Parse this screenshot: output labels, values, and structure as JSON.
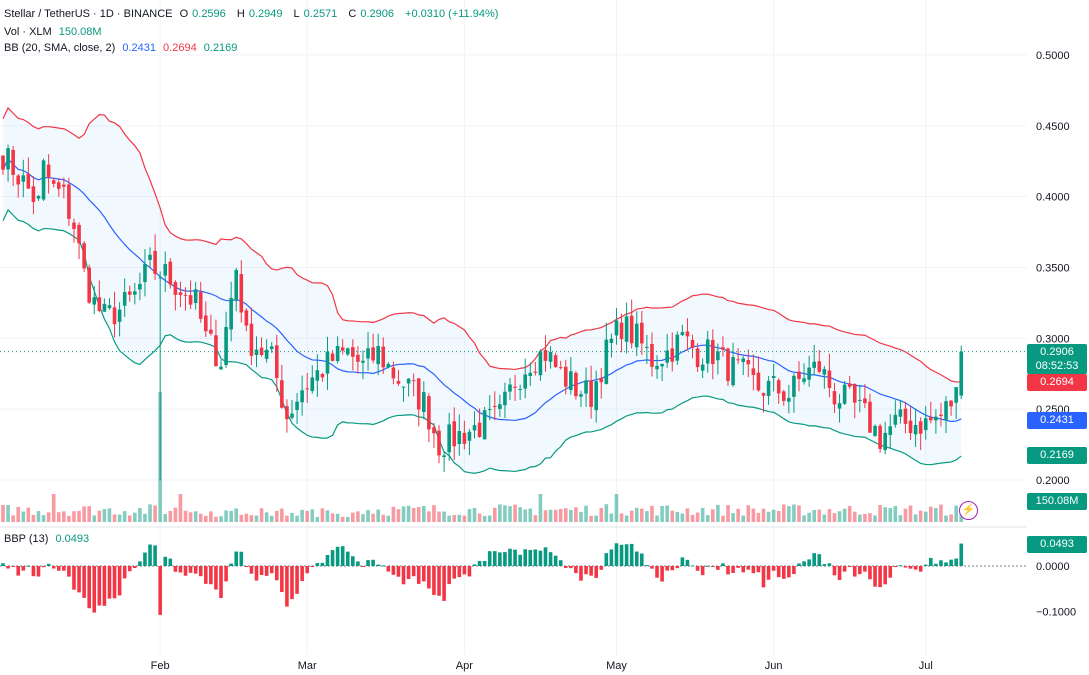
{
  "legend": {
    "symbol": "Stellar / TetherUS · 1D · BINANCE",
    "open_label": "O",
    "open": "0.2596",
    "high_label": "H",
    "high": "0.2949",
    "low_label": "L",
    "low": "0.2571",
    "close_label": "C",
    "close": "0.2906",
    "change": "+0.0310 (+11.94%)",
    "vol_label": "Vol · XLM",
    "vol": "150.08M",
    "bb_label": "BB (20, SMA, close, 2)",
    "bb_basis": "0.2431",
    "bb_upper": "0.2694",
    "bb_lower": "0.2169",
    "bbp_label": "BBP (13)",
    "bbp": "0.0493"
  },
  "tags": {
    "price": "0.2906",
    "countdown": "08:52:53",
    "upper": "0.2694",
    "basis": "0.2431",
    "lower": "0.2169",
    "volume": "150.08M",
    "bbp": "0.0493"
  },
  "colors": {
    "up": "#089981",
    "down": "#f23645",
    "basis": "#2962ff",
    "upper": "#f23645",
    "lower": "#089981",
    "band_fill": "#2196f3"
  },
  "chart_data": {
    "type": "candlestick",
    "x_ticks": [
      "Feb",
      "Mar",
      "Apr",
      "May",
      "Jun",
      "Jul"
    ],
    "x_tick_days": [
      31,
      60,
      91,
      121,
      152,
      182
    ],
    "price_ticks": [
      "0.5000",
      "0.4500",
      "0.4000",
      "0.3500",
      "0.3000",
      "0.2500",
      "0.2000"
    ],
    "price_tick_values": [
      0.5,
      0.45,
      0.4,
      0.35,
      0.3,
      0.25,
      0.2
    ],
    "bbp_ticks": [
      "0.0000",
      "−0.1000"
    ],
    "bbp_tick_values": [
      0,
      -0.1
    ],
    "close_anchors": [
      [
        0,
        0.43
      ],
      [
        4,
        0.41
      ],
      [
        7,
        0.395
      ],
      [
        8,
        0.42
      ],
      [
        10,
        0.405
      ],
      [
        12,
        0.4
      ],
      [
        14,
        0.38
      ],
      [
        16,
        0.345
      ],
      [
        18,
        0.325
      ],
      [
        20,
        0.315
      ],
      [
        23,
        0.32
      ],
      [
        26,
        0.33
      ],
      [
        29,
        0.35
      ],
      [
        32,
        0.345
      ],
      [
        35,
        0.335
      ],
      [
        38,
        0.325
      ],
      [
        40,
        0.3
      ],
      [
        43,
        0.285
      ],
      [
        46,
        0.35
      ],
      [
        48,
        0.3
      ],
      [
        50,
        0.295
      ],
      [
        53,
        0.285
      ],
      [
        56,
        0.245
      ],
      [
        59,
        0.265
      ],
      [
        62,
        0.275
      ],
      [
        65,
        0.285
      ],
      [
        68,
        0.29
      ],
      [
        71,
        0.28
      ],
      [
        74,
        0.29
      ],
      [
        77,
        0.275
      ],
      [
        80,
        0.265
      ],
      [
        83,
        0.255
      ],
      [
        86,
        0.225
      ],
      [
        89,
        0.23
      ],
      [
        92,
        0.235
      ],
      [
        95,
        0.24
      ],
      [
        98,
        0.245
      ],
      [
        101,
        0.27
      ],
      [
        104,
        0.285
      ],
      [
        107,
        0.29
      ],
      [
        110,
        0.275
      ],
      [
        113,
        0.265
      ],
      [
        116,
        0.26
      ],
      [
        119,
        0.29
      ],
      [
        122,
        0.31
      ],
      [
        125,
        0.3
      ],
      [
        128,
        0.285
      ],
      [
        131,
        0.29
      ],
      [
        134,
        0.3
      ],
      [
        137,
        0.29
      ],
      [
        140,
        0.29
      ],
      [
        143,
        0.28
      ],
      [
        146,
        0.275
      ],
      [
        149,
        0.265
      ],
      [
        152,
        0.265
      ],
      [
        155,
        0.26
      ],
      [
        158,
        0.275
      ],
      [
        161,
        0.28
      ],
      [
        164,
        0.26
      ],
      [
        167,
        0.255
      ],
      [
        170,
        0.245
      ],
      [
        173,
        0.23
      ],
      [
        176,
        0.24
      ],
      [
        179,
        0.24
      ],
      [
        182,
        0.24
      ],
      [
        185,
        0.245
      ],
      [
        188,
        0.26
      ],
      [
        189,
        0.2906
      ]
    ],
    "last_candle": {
      "open": 0.2596,
      "high": 0.2949,
      "low": 0.2571,
      "close": 0.2906
    },
    "volume_last": 150.08,
    "volume_spike_day": 31,
    "bb_basis_last": 0.2431,
    "bb_upper_last": 0.2694,
    "bb_lower_last": 0.2169,
    "bbp_last": 0.0493,
    "price_range": [
      0.195,
      0.52
    ],
    "bbp_range": [
      -0.135,
      0.055
    ]
  }
}
